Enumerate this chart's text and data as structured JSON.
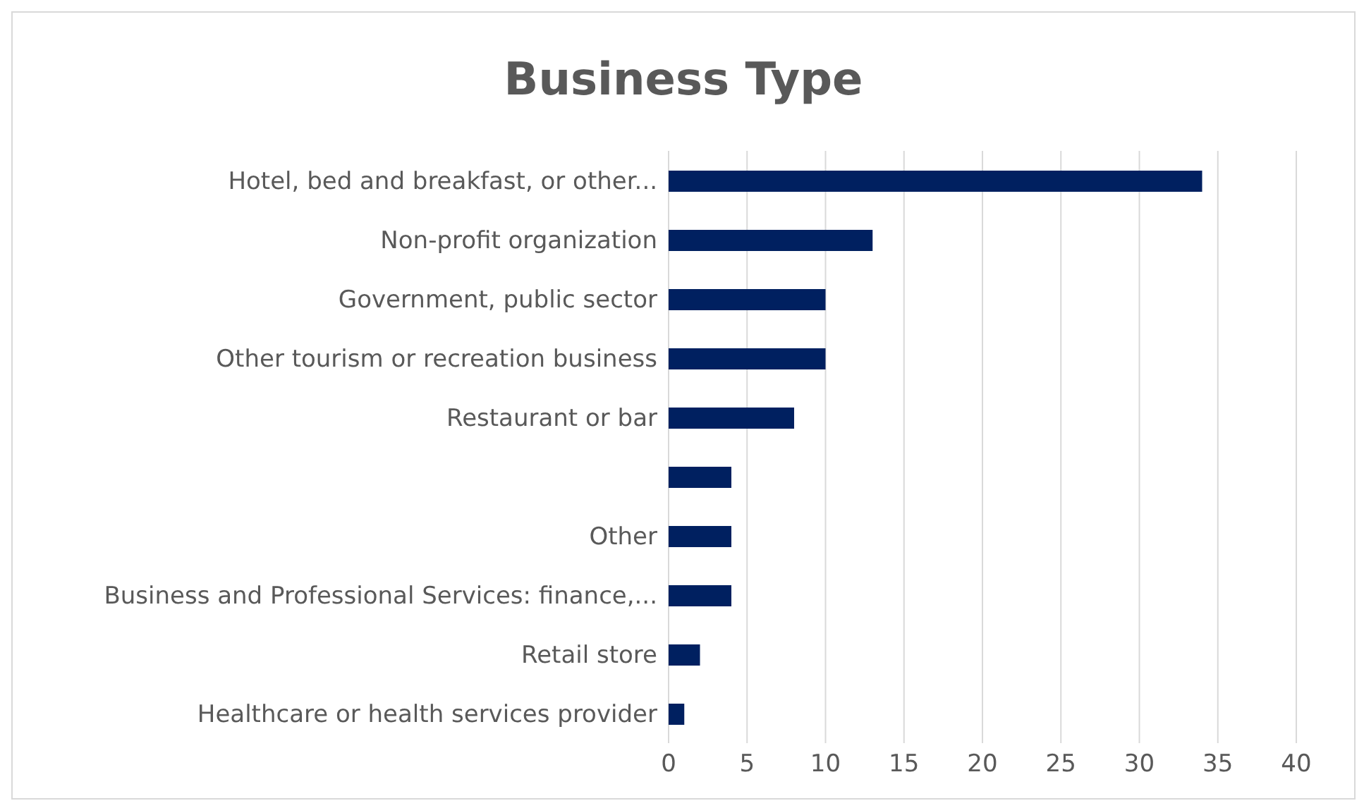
{
  "chart_data": {
    "type": "bar",
    "orientation": "horizontal",
    "title": "Business Type",
    "categories": [
      "Hotel, bed and breakfast, or other...",
      "Non-profit organization",
      "Government, public sector",
      "Other tourism or recreation business",
      "Restaurant or bar",
      null,
      "Other",
      "Business and Professional Services: finance,...",
      "Retail store",
      "Healthcare or health services provider"
    ],
    "values": [
      34,
      13,
      10,
      10,
      8,
      4,
      4,
      4,
      2,
      1
    ],
    "color": "#002060",
    "xlim": [
      0,
      40
    ],
    "xticks": [
      0,
      5,
      10,
      15,
      20,
      25,
      30,
      35,
      40
    ],
    "grid": "x"
  }
}
